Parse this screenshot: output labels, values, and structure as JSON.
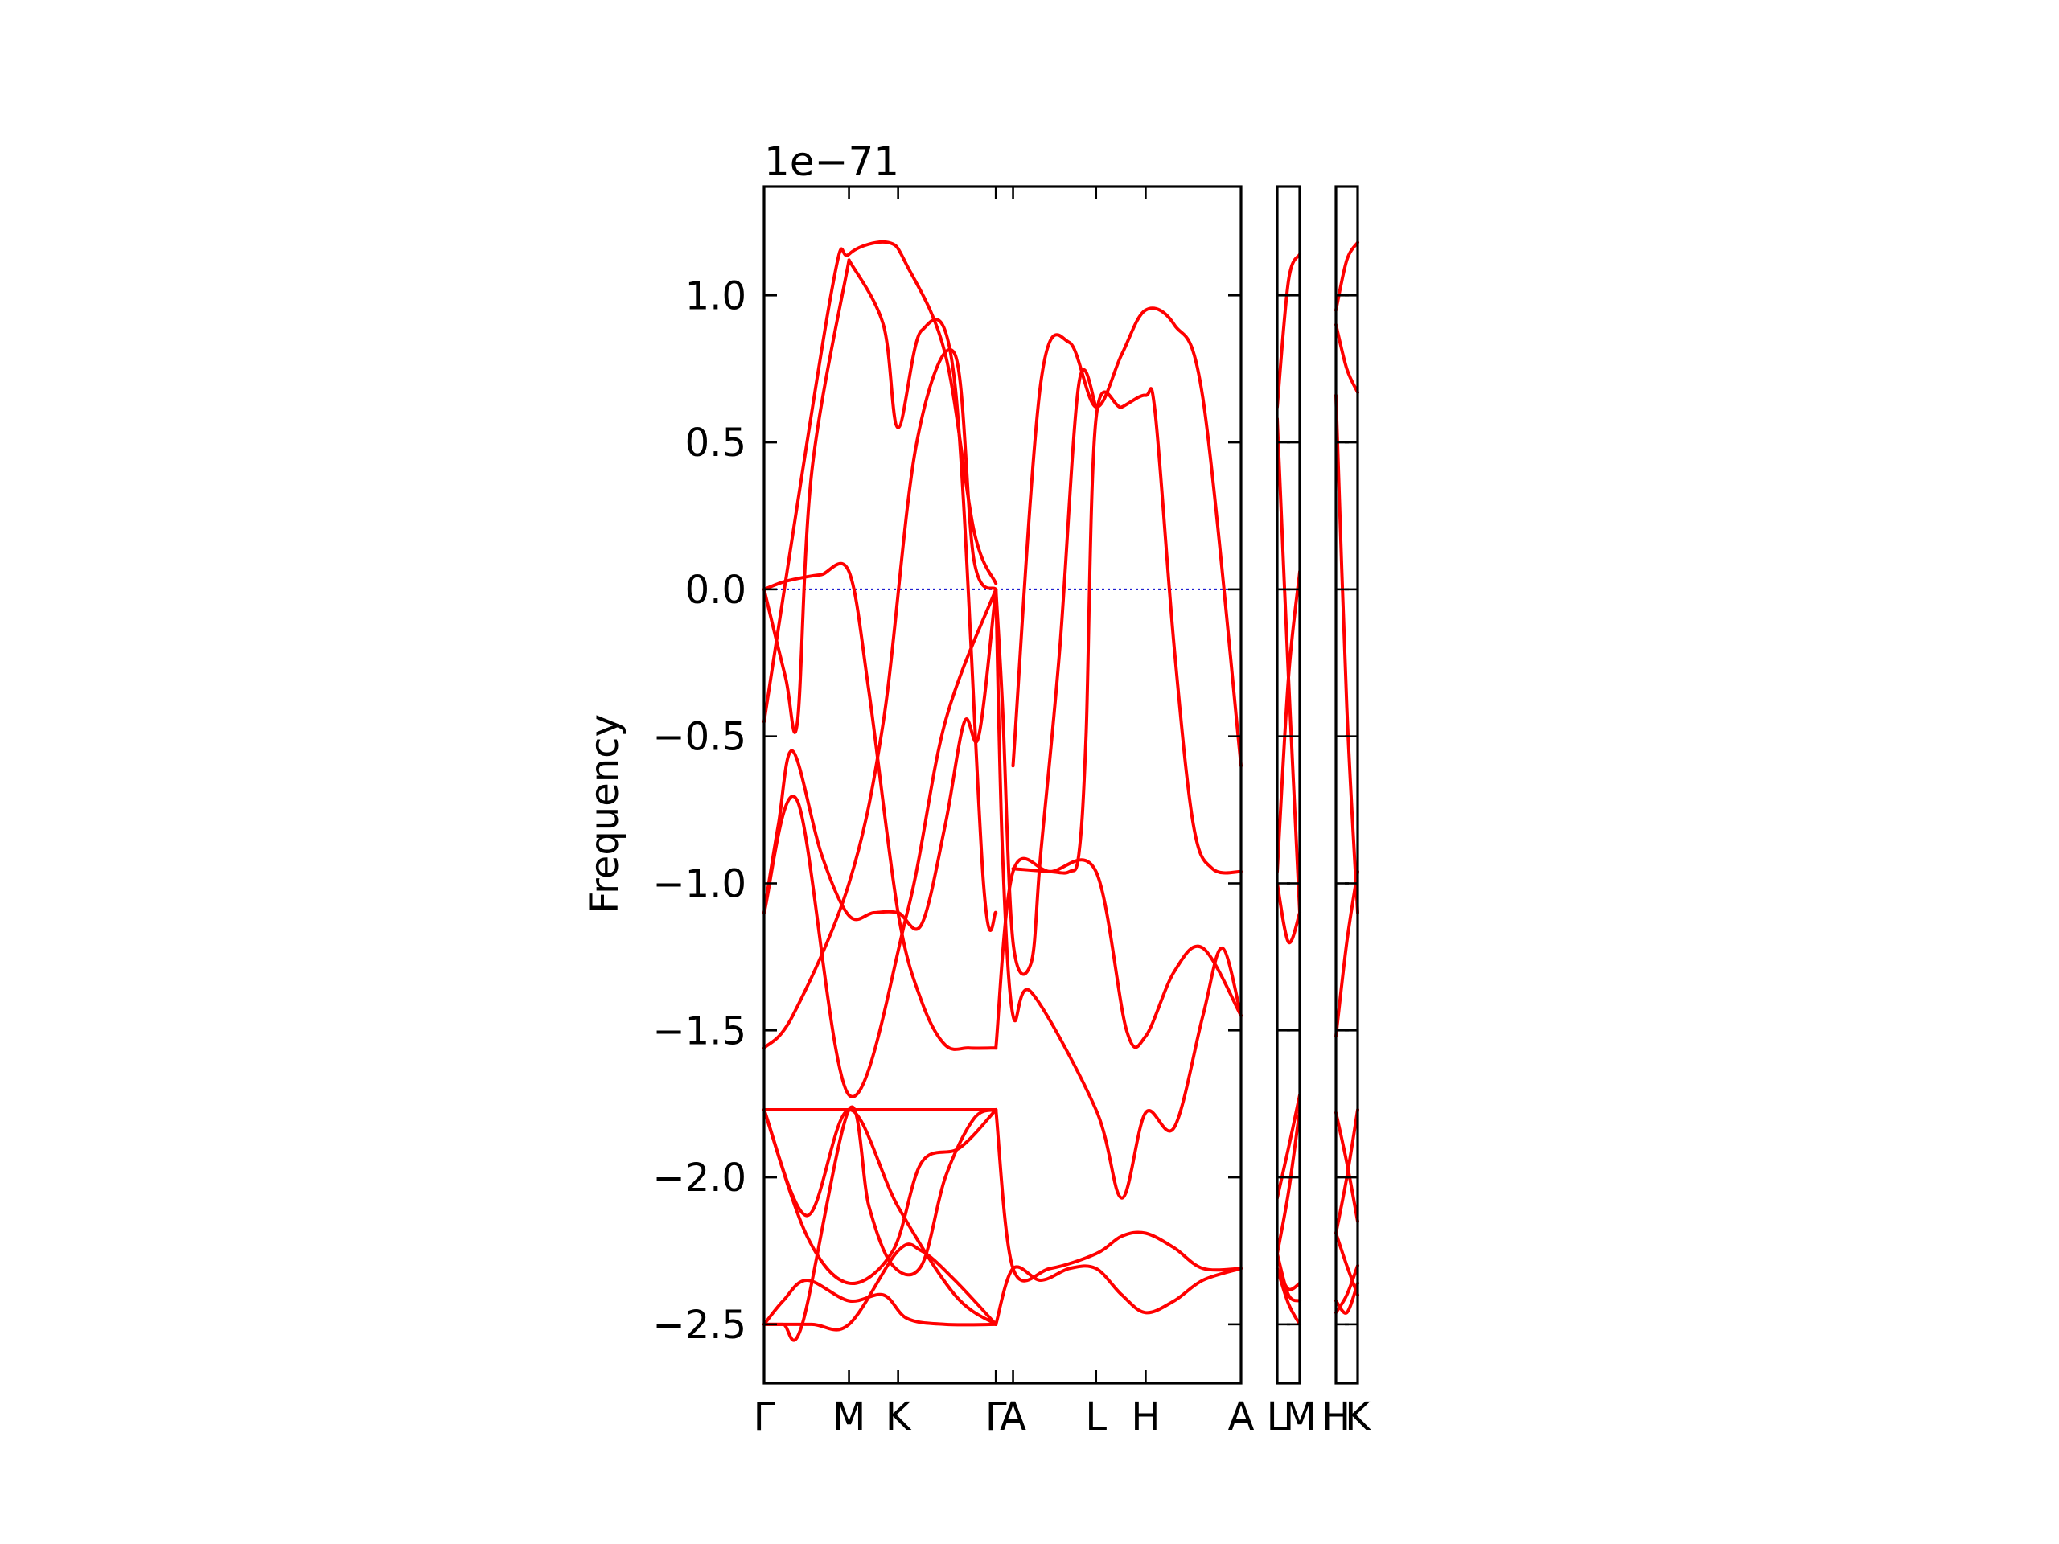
{
  "chart_data": {
    "type": "line",
    "title": "",
    "offset_text": "1e−71",
    "ylabel": "Frequency",
    "xlabel": "",
    "ylim": [
      -2.7,
      1.37
    ],
    "yticks": [
      {
        "value": -2.5,
        "label": "−2.5"
      },
      {
        "value": -2.0,
        "label": "−2.0"
      },
      {
        "value": -1.5,
        "label": "−1.5"
      },
      {
        "value": -1.0,
        "label": "−1.0"
      },
      {
        "value": -0.5,
        "label": "−0.5"
      },
      {
        "value": 0.0,
        "label": "0.0"
      },
      {
        "value": 0.5,
        "label": "0.5"
      },
      {
        "value": 1.0,
        "label": "1.0"
      }
    ],
    "colors": {
      "band": "#ff0000",
      "zero_line": "#0000cc"
    },
    "panels": [
      {
        "name": "main",
        "xlim": [
          0,
          1
        ],
        "path_labels": [
          {
            "x": 0.0,
            "label": "Γ"
          },
          {
            "x": 0.178,
            "label": "M"
          },
          {
            "x": 0.281,
            "label": "K"
          },
          {
            "x": 0.486,
            "label": "Γ"
          },
          {
            "x": 0.522,
            "label": "A"
          },
          {
            "x": 0.696,
            "label": "L"
          },
          {
            "x": 0.8,
            "label": "H"
          },
          {
            "x": 1.0,
            "label": "A"
          }
        ],
        "series": [
          {
            "x": [
              0,
              0.04,
              0.08,
              0.12,
              0.178,
              0.22,
              0.281,
              0.33,
              0.38,
              0.43,
              0.486
            ],
            "y": [
              0,
              0.025,
              0.04,
              0.05,
              0.06,
              -0.35,
              -1.1,
              -1.4,
              -1.55,
              -1.56,
              -1.56
            ]
          },
          {
            "x": [
              0,
              0.045,
              0.07,
              0.1,
              0.178
            ],
            "y": [
              0,
              -0.3,
              -0.45,
              0.4,
              1.12
            ]
          },
          {
            "x": [
              0,
              0.03,
              0.06,
              0.12,
              0.178,
              0.23,
              0.281,
              0.33,
              0.38,
              0.42,
              0.45,
              0.486
            ],
            "y": [
              -1.1,
              -0.8,
              -0.55,
              -0.9,
              -1.11,
              -1.1,
              -1.1,
              -1.14,
              -0.8,
              -0.45,
              -0.5,
              0
            ]
          },
          {
            "x": [
              0,
              0.06,
              0.178,
              0.25,
              0.32,
              0.4,
              0.44,
              0.486
            ],
            "y": [
              -1.56,
              -1.45,
              -1.0,
              -0.45,
              0.5,
              0.8,
              0.1,
              0.0
            ]
          },
          {
            "x": [
              0,
              0.07,
              0.178,
              0.3,
              0.38,
              0.486
            ],
            "y": [
              -1.1,
              -0.72,
              -1.72,
              -1.1,
              -0.45,
              0.0
            ]
          },
          {
            "x": [
              0,
              0.178,
              0.486
            ],
            "y": [
              -1.77,
              -1.77,
              -1.77
            ]
          },
          {
            "x": [
              0,
              0.09,
              0.178,
              0.281,
              0.4,
              0.486
            ],
            "y": [
              -1.77,
              -2.13,
              -1.77,
              -2.1,
              -2.4,
              -2.5
            ]
          },
          {
            "x": [
              0,
              0.09,
              0.178,
              0.27,
              0.33,
              0.41,
              0.486
            ],
            "y": [
              -1.77,
              -2.2,
              -2.36,
              -2.25,
              -1.95,
              -1.9,
              -1.77
            ]
          },
          {
            "x": [
              0,
              0.1,
              0.178,
              0.281,
              0.33,
              0.4,
              0.486
            ],
            "y": [
              -2.5,
              -2.5,
              -2.5,
              -2.25,
              -2.25,
              -2.35,
              -2.5
            ]
          },
          {
            "x": [
              0,
              0.04,
              0.09,
              0.178,
              0.25,
              0.3,
              0.38,
              0.486
            ],
            "y": [
              -2.5,
              -2.42,
              -2.35,
              -2.42,
              -2.4,
              -2.48,
              -2.5,
              -2.5
            ]
          },
          {
            "x": [
              0,
              0.04,
              0.08,
              0.178,
              0.22,
              0.27,
              0.33,
              0.38,
              0.44,
              0.486
            ],
            "y": [
              -2.5,
              -2.5,
              -2.5,
              -1.77,
              -2.1,
              -2.3,
              -2.3,
              -2.0,
              -1.8,
              -1.77
            ]
          },
          {
            "x": [
              0,
              0.14,
              0.178,
              0.26,
              0.3,
              0.38,
              0.44,
              0.486
            ],
            "y": [
              -0.45,
              1.0,
              1.14,
              1.18,
              1.1,
              0.8,
              0.2,
              0.02
            ]
          },
          {
            "x": [
              0.178,
              0.25,
              0.281,
              0.33,
              0.4,
              0.46,
              0.486
            ],
            "y": [
              1.12,
              0.9,
              0.55,
              0.88,
              0.7,
              -1.0,
              -1.1
            ]
          },
          {
            "x": [
              0.486,
              0.5,
              0.522,
              0.56,
              0.58,
              0.62,
              0.66,
              0.696
            ],
            "y": [
              0.0,
              -0.4,
              -1.2,
              -1.27,
              -0.9,
              -0.2,
              0.7,
              0.62
            ]
          },
          {
            "x": [
              0.522,
              0.58,
              0.64,
              0.696,
              0.75,
              0.8,
              0.86,
              0.92,
              1.0
            ],
            "y": [
              -0.6,
              0.7,
              0.84,
              0.62,
              0.8,
              0.95,
              0.9,
              0.65,
              -0.6
            ]
          },
          {
            "x": [
              0.522,
              0.6,
              0.64,
              0.66,
              0.675,
              0.696,
              0.75,
              0.8,
              0.82,
              0.86,
              0.9,
              0.94,
              1.0
            ],
            "y": [
              -0.95,
              -0.96,
              -0.96,
              -0.9,
              -0.5,
              0.58,
              0.62,
              0.66,
              0.6,
              -0.2,
              -0.8,
              -0.95,
              -0.96
            ]
          },
          {
            "x": [
              0.486,
              0.5,
              0.522,
              0.56,
              0.696,
              0.75,
              0.8,
              0.86,
              0.92,
              0.96,
              1.0
            ],
            "y": [
              0.0,
              -0.9,
              -1.45,
              -1.37,
              -1.77,
              -2.07,
              -1.78,
              -1.83,
              -1.45,
              -1.22,
              -1.45
            ]
          },
          {
            "x": [
              0.486,
              0.522,
              0.6,
              0.696,
              0.76,
              0.8,
              0.86,
              0.92,
              1.0
            ],
            "y": [
              -1.56,
              -0.96,
              -0.96,
              -0.96,
              -1.5,
              -1.52,
              -1.3,
              -1.22,
              -1.45
            ]
          },
          {
            "x": [
              0.486,
              0.522,
              0.6,
              0.696,
              0.75,
              0.8,
              0.86,
              0.92,
              1.0
            ],
            "y": [
              -1.77,
              -2.31,
              -2.31,
              -2.26,
              -2.2,
              -2.19,
              -2.24,
              -2.31,
              -2.31
            ]
          },
          {
            "x": [
              0.486,
              0.522,
              0.58,
              0.64,
              0.696,
              0.75,
              0.8,
              0.86,
              0.92,
              1.0
            ],
            "y": [
              -2.5,
              -2.31,
              -2.35,
              -2.31,
              -2.31,
              -2.4,
              -2.46,
              -2.42,
              -2.35,
              -2.31
            ]
          }
        ]
      },
      {
        "name": "L-M",
        "path_labels": [
          {
            "x": 0.0,
            "label": "L"
          },
          {
            "x": 1.0,
            "label": "M"
          }
        ],
        "series": [
          {
            "x": [
              0,
              0.5,
              1
            ],
            "y": [
              0.62,
              1.05,
              1.14
            ]
          },
          {
            "x": [
              0,
              0.5,
              1
            ],
            "y": [
              0.58,
              -0.3,
              -1.1
            ]
          },
          {
            "x": [
              0,
              0.5,
              1
            ],
            "y": [
              -0.96,
              -0.3,
              0.06
            ]
          },
          {
            "x": [
              0,
              0.5,
              1
            ],
            "y": [
              -1.0,
              -1.2,
              -1.1
            ]
          },
          {
            "x": [
              0,
              0.5,
              1
            ],
            "y": [
              -2.07,
              -1.9,
              -1.72
            ]
          },
          {
            "x": [
              0,
              0.5,
              1
            ],
            "y": [
              -2.26,
              -2.05,
              -1.77
            ]
          },
          {
            "x": [
              0,
              0.5,
              1
            ],
            "y": [
              -2.31,
              -2.38,
              -2.36
            ]
          },
          {
            "x": [
              0,
              0.5,
              1
            ],
            "y": [
              -2.31,
              -2.43,
              -2.5
            ]
          },
          {
            "x": [
              0,
              0.5,
              1
            ],
            "y": [
              -2.26,
              -2.4,
              -2.42
            ]
          }
        ]
      },
      {
        "name": "H-K",
        "path_labels": [
          {
            "x": 0.0,
            "label": "H"
          },
          {
            "x": 1.0,
            "label": "K"
          }
        ],
        "series": [
          {
            "x": [
              0,
              0.5,
              1
            ],
            "y": [
              0.95,
              1.12,
              1.18
            ]
          },
          {
            "x": [
              0,
              0.5,
              1
            ],
            "y": [
              0.9,
              0.75,
              0.67
            ]
          },
          {
            "x": [
              0,
              0.5,
              1
            ],
            "y": [
              0.66,
              -0.4,
              -1.1
            ]
          },
          {
            "x": [
              0,
              0.5,
              1
            ],
            "y": [
              -1.52,
              -1.2,
              -0.96
            ]
          },
          {
            "x": [
              0,
              0.5,
              1
            ],
            "y": [
              -1.78,
              -1.95,
              -2.15
            ]
          },
          {
            "x": [
              0,
              0.5,
              1
            ],
            "y": [
              -2.19,
              -2.0,
              -1.77
            ]
          },
          {
            "x": [
              0,
              0.5,
              1
            ],
            "y": [
              -2.46,
              -2.4,
              -2.3
            ]
          },
          {
            "x": [
              0,
              0.5,
              1
            ],
            "y": [
              -2.42,
              -2.46,
              -2.36
            ]
          },
          {
            "x": [
              0,
              0.5,
              1
            ],
            "y": [
              -2.19,
              -2.3,
              -2.4
            ]
          }
        ]
      }
    ]
  }
}
